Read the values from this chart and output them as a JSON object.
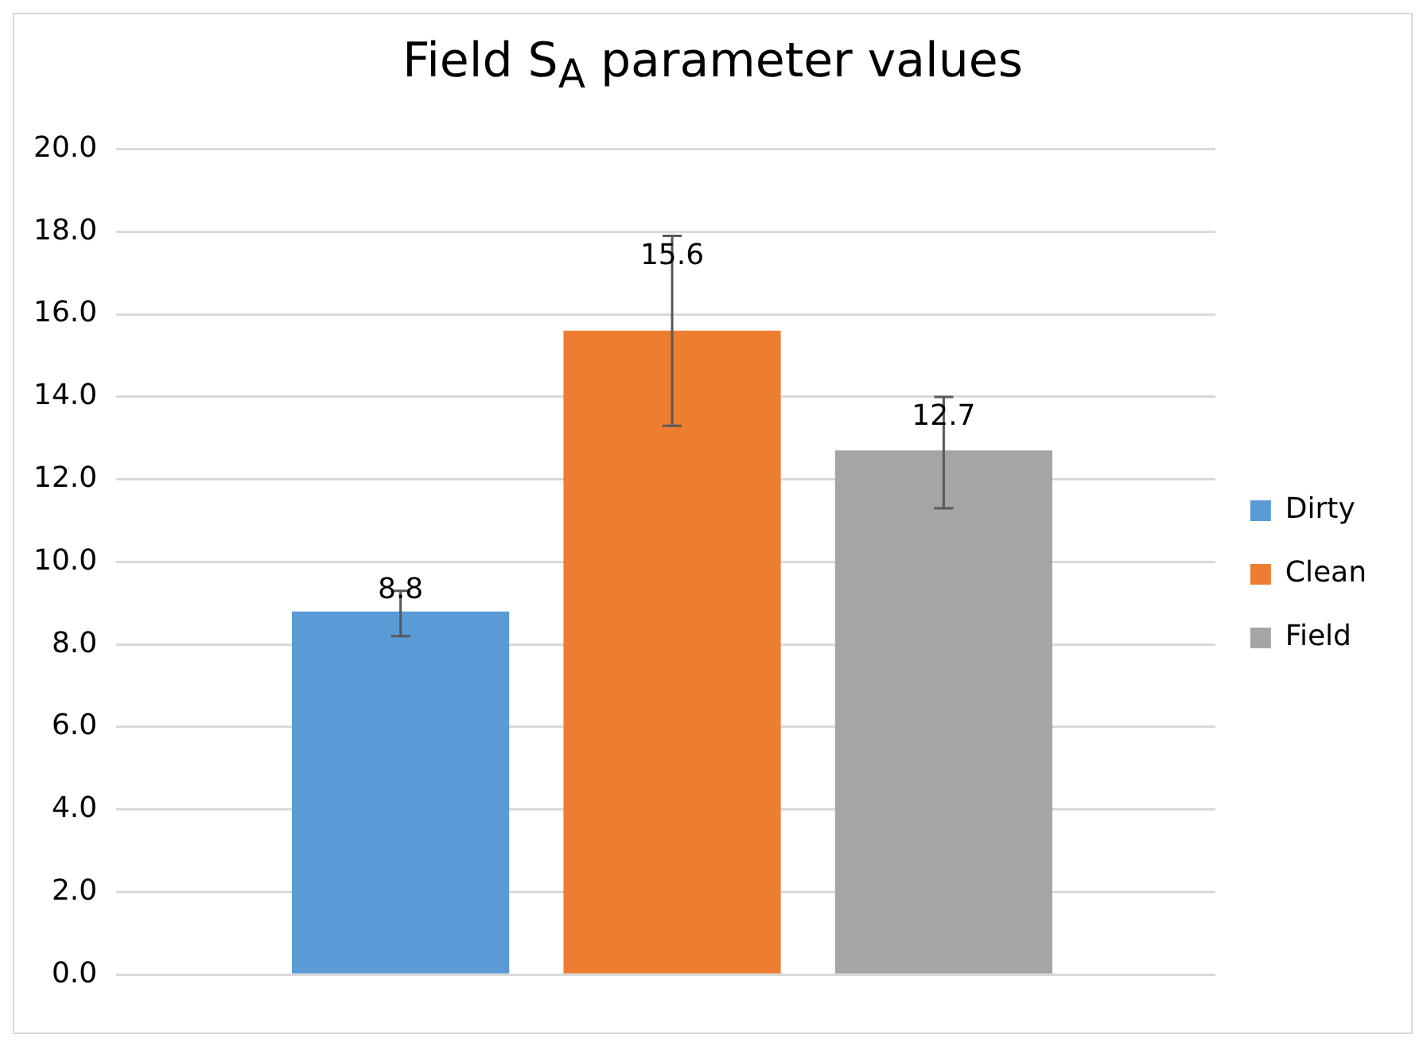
{
  "chart_data": {
    "type": "bar",
    "title": "Field S$_{A}$ parameter values",
    "categories": [
      null
    ],
    "series": [
      {
        "name": "Dirty",
        "color": "#5b9bd5",
        "values": [
          8.8
        ],
        "errors": [
          [
            8.2,
            9.3
          ]
        ]
      },
      {
        "name": "Clean",
        "color": "#ed7d31",
        "values": [
          15.6
        ],
        "errors": [
          [
            13.3,
            17.9
          ]
        ]
      },
      {
        "name": "Field",
        "color": "#a5a5a5",
        "values": [
          12.7
        ],
        "errors": [
          [
            11.3,
            14.0
          ]
        ]
      }
    ],
    "ylim": [
      0,
      20
    ],
    "yticks": [
      {
        "value": 0,
        "label": "0.0"
      },
      {
        "value": 2,
        "label": "2.0"
      },
      {
        "value": 4,
        "label": "4.0"
      },
      {
        "value": 6,
        "label": "6.0"
      },
      {
        "value": 8,
        "label": "8.0"
      },
      {
        "value": 10,
        "label": "10.0"
      },
      {
        "value": 12,
        "label": "12.0"
      },
      {
        "value": 14,
        "label": "14.0"
      },
      {
        "value": 16,
        "label": "16.0"
      },
      {
        "value": 18,
        "label": "18.0"
      },
      {
        "value": 20,
        "label": "20.0"
      }
    ],
    "grid": "y",
    "legend": "right",
    "data_labels": true
  }
}
